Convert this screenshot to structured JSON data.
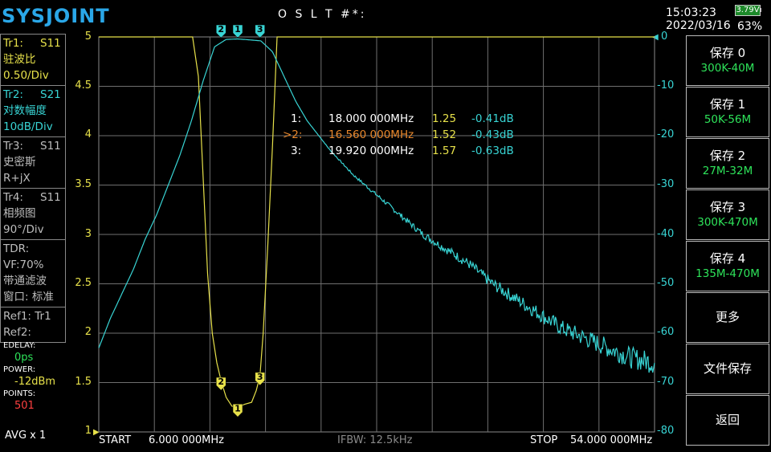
{
  "header": {
    "logo": "SYSJOINT",
    "cal_status": "O S L T #*:",
    "time": "15:03:23",
    "date": "2022/03/16",
    "battery_voltage": "3.79V",
    "battery_percent": "63%"
  },
  "traces": [
    {
      "id": "Tr1:",
      "param": "S11",
      "format": "驻波比",
      "scale": "0.50/Div",
      "color": "#e7e14a"
    },
    {
      "id": "Tr2:",
      "param": "S21",
      "format": "对数幅度",
      "scale": "10dB/Div",
      "color": "#38d4d4"
    },
    {
      "id": "Tr3:",
      "param": "S11",
      "format": "史密斯",
      "scale": "R+jX",
      "color": "#bdbdbd"
    },
    {
      "id": "Tr4:",
      "param": "S11",
      "format": "相频图",
      "scale": "90°/Div",
      "color": "#bdbdbd"
    }
  ],
  "tdr": {
    "title": "TDR:",
    "vf": "VF:70%",
    "filter": "带通滤波",
    "window": "窗口: 标准"
  },
  "refs": {
    "ref1": "Ref1: Tr1",
    "ref2": "Ref2:"
  },
  "settings": {
    "edelay_label": "EDELAY:",
    "edelay_value": "0ps",
    "power_label": "POWER:",
    "power_value": "-12dBm",
    "points_label": "POINTS:",
    "points_value": "501",
    "avg": "AVG x 1"
  },
  "axis": {
    "left_ticks": [
      "5",
      "4.5",
      "4",
      "3.5",
      "3",
      "2.5",
      "2",
      "1.5",
      "1"
    ],
    "right_ticks": [
      "0",
      "-10",
      "-20",
      "-30",
      "-40",
      "-50",
      "-60",
      "-70",
      "-80"
    ]
  },
  "markers": [
    {
      "label": "1:",
      "freq": "18.000 000MHz",
      "swr": "1.25",
      "db": "-0.41dB",
      "color": "#ffffff"
    },
    {
      "label": ">2:",
      "freq": "16.560 000MHz",
      "swr": "1.52",
      "db": "-0.43dB",
      "color": "#e8872c"
    },
    {
      "label": "3:",
      "freq": "19.920 000MHz",
      "swr": "1.57",
      "db": "-0.63dB",
      "color": "#ffffff"
    }
  ],
  "marker_flags": [
    "1",
    "2",
    "3"
  ],
  "sweep": {
    "start_label": "START",
    "start_value": "6.000 000MHz",
    "ifbw": "IFBW: 12.5kHz",
    "stop_label": "STOP",
    "stop_value": "54.000 000MHz"
  },
  "menu": [
    {
      "title": "保存 0",
      "sub": "300K-40M"
    },
    {
      "title": "保存 1",
      "sub": "50K-56M"
    },
    {
      "title": "保存 2",
      "sub": "27M-32M"
    },
    {
      "title": "保存 3",
      "sub": "300K-470M"
    },
    {
      "title": "保存 4",
      "sub": "135M-470M"
    },
    {
      "title": "更多",
      "sub": ""
    },
    {
      "title": "文件保存",
      "sub": ""
    },
    {
      "title": "返回",
      "sub": ""
    }
  ],
  "chart_data": {
    "type": "line",
    "x_unit": "MHz",
    "xlim": [
      6,
      54
    ],
    "series": [
      {
        "axis": "left",
        "color": "#e7e14a",
        "ylim": [
          1,
          5
        ],
        "x": [
          6,
          14.1,
          14.6,
          15.0,
          15.4,
          15.8,
          16.2,
          16.56,
          17.0,
          17.5,
          18.0,
          18.6,
          19.2,
          19.6,
          19.92,
          20.2,
          20.6,
          21.0,
          21.4,
          54
        ],
        "y": [
          5,
          5,
          4.6,
          3.6,
          2.6,
          2.0,
          1.7,
          1.52,
          1.35,
          1.26,
          1.25,
          1.28,
          1.3,
          1.42,
          1.57,
          2.0,
          2.9,
          3.9,
          5,
          5
        ]
      },
      {
        "axis": "right",
        "color": "#38d4d4",
        "ylim": [
          -80,
          0
        ],
        "x": [
          6,
          7,
          8,
          9,
          10,
          11,
          12,
          13,
          14,
          15,
          16,
          17,
          18,
          19,
          20,
          21,
          22,
          23,
          24,
          26,
          28,
          30,
          32,
          34,
          36,
          38,
          40,
          42,
          44,
          46,
          48,
          50,
          52,
          54
        ],
        "y": [
          -63,
          -57,
          -52,
          -47,
          -41,
          -36,
          -30,
          -24,
          -17,
          -9,
          -2,
          -0.5,
          -0.4,
          -0.6,
          -0.8,
          -3,
          -8,
          -13,
          -17,
          -23,
          -28,
          -32,
          -36,
          -40,
          -43,
          -46,
          -50,
          -53,
          -56,
          -59,
          -61,
          -63,
          -65,
          -66
        ]
      }
    ]
  }
}
